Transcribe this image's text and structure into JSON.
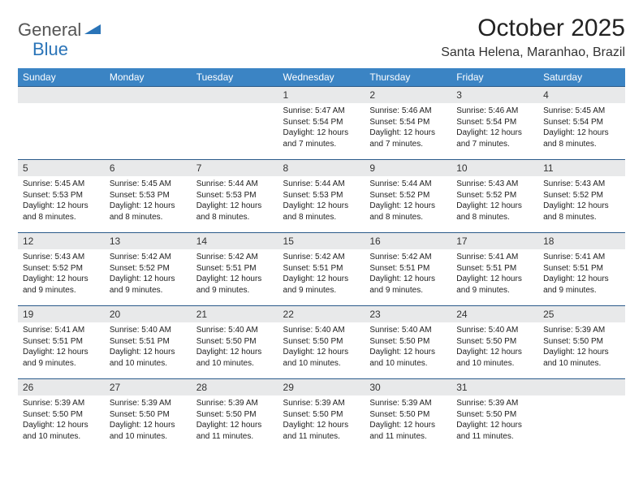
{
  "logo": {
    "text1": "General",
    "text2": "Blue"
  },
  "title": "October 2025",
  "location": "Santa Helena, Maranhao, Brazil",
  "colors": {
    "header_bg": "#3b84c4",
    "header_text": "#ffffff",
    "daynum_bg": "#e8e9ea",
    "row_border": "#2a5a8a",
    "logo_blue": "#2a74b8",
    "logo_gray": "#555555",
    "text": "#222222",
    "background": "#ffffff"
  },
  "weekdays": [
    "Sunday",
    "Monday",
    "Tuesday",
    "Wednesday",
    "Thursday",
    "Friday",
    "Saturday"
  ],
  "weeks": [
    [
      {
        "n": "",
        "lines": []
      },
      {
        "n": "",
        "lines": []
      },
      {
        "n": "",
        "lines": []
      },
      {
        "n": "1",
        "lines": [
          "Sunrise: 5:47 AM",
          "Sunset: 5:54 PM",
          "Daylight: 12 hours",
          "and 7 minutes."
        ]
      },
      {
        "n": "2",
        "lines": [
          "Sunrise: 5:46 AM",
          "Sunset: 5:54 PM",
          "Daylight: 12 hours",
          "and 7 minutes."
        ]
      },
      {
        "n": "3",
        "lines": [
          "Sunrise: 5:46 AM",
          "Sunset: 5:54 PM",
          "Daylight: 12 hours",
          "and 7 minutes."
        ]
      },
      {
        "n": "4",
        "lines": [
          "Sunrise: 5:45 AM",
          "Sunset: 5:54 PM",
          "Daylight: 12 hours",
          "and 8 minutes."
        ]
      }
    ],
    [
      {
        "n": "5",
        "lines": [
          "Sunrise: 5:45 AM",
          "Sunset: 5:53 PM",
          "Daylight: 12 hours",
          "and 8 minutes."
        ]
      },
      {
        "n": "6",
        "lines": [
          "Sunrise: 5:45 AM",
          "Sunset: 5:53 PM",
          "Daylight: 12 hours",
          "and 8 minutes."
        ]
      },
      {
        "n": "7",
        "lines": [
          "Sunrise: 5:44 AM",
          "Sunset: 5:53 PM",
          "Daylight: 12 hours",
          "and 8 minutes."
        ]
      },
      {
        "n": "8",
        "lines": [
          "Sunrise: 5:44 AM",
          "Sunset: 5:53 PM",
          "Daylight: 12 hours",
          "and 8 minutes."
        ]
      },
      {
        "n": "9",
        "lines": [
          "Sunrise: 5:44 AM",
          "Sunset: 5:52 PM",
          "Daylight: 12 hours",
          "and 8 minutes."
        ]
      },
      {
        "n": "10",
        "lines": [
          "Sunrise: 5:43 AM",
          "Sunset: 5:52 PM",
          "Daylight: 12 hours",
          "and 8 minutes."
        ]
      },
      {
        "n": "11",
        "lines": [
          "Sunrise: 5:43 AM",
          "Sunset: 5:52 PM",
          "Daylight: 12 hours",
          "and 8 minutes."
        ]
      }
    ],
    [
      {
        "n": "12",
        "lines": [
          "Sunrise: 5:43 AM",
          "Sunset: 5:52 PM",
          "Daylight: 12 hours",
          "and 9 minutes."
        ]
      },
      {
        "n": "13",
        "lines": [
          "Sunrise: 5:42 AM",
          "Sunset: 5:52 PM",
          "Daylight: 12 hours",
          "and 9 minutes."
        ]
      },
      {
        "n": "14",
        "lines": [
          "Sunrise: 5:42 AM",
          "Sunset: 5:51 PM",
          "Daylight: 12 hours",
          "and 9 minutes."
        ]
      },
      {
        "n": "15",
        "lines": [
          "Sunrise: 5:42 AM",
          "Sunset: 5:51 PM",
          "Daylight: 12 hours",
          "and 9 minutes."
        ]
      },
      {
        "n": "16",
        "lines": [
          "Sunrise: 5:42 AM",
          "Sunset: 5:51 PM",
          "Daylight: 12 hours",
          "and 9 minutes."
        ]
      },
      {
        "n": "17",
        "lines": [
          "Sunrise: 5:41 AM",
          "Sunset: 5:51 PM",
          "Daylight: 12 hours",
          "and 9 minutes."
        ]
      },
      {
        "n": "18",
        "lines": [
          "Sunrise: 5:41 AM",
          "Sunset: 5:51 PM",
          "Daylight: 12 hours",
          "and 9 minutes."
        ]
      }
    ],
    [
      {
        "n": "19",
        "lines": [
          "Sunrise: 5:41 AM",
          "Sunset: 5:51 PM",
          "Daylight: 12 hours",
          "and 9 minutes."
        ]
      },
      {
        "n": "20",
        "lines": [
          "Sunrise: 5:40 AM",
          "Sunset: 5:51 PM",
          "Daylight: 12 hours",
          "and 10 minutes."
        ]
      },
      {
        "n": "21",
        "lines": [
          "Sunrise: 5:40 AM",
          "Sunset: 5:50 PM",
          "Daylight: 12 hours",
          "and 10 minutes."
        ]
      },
      {
        "n": "22",
        "lines": [
          "Sunrise: 5:40 AM",
          "Sunset: 5:50 PM",
          "Daylight: 12 hours",
          "and 10 minutes."
        ]
      },
      {
        "n": "23",
        "lines": [
          "Sunrise: 5:40 AM",
          "Sunset: 5:50 PM",
          "Daylight: 12 hours",
          "and 10 minutes."
        ]
      },
      {
        "n": "24",
        "lines": [
          "Sunrise: 5:40 AM",
          "Sunset: 5:50 PM",
          "Daylight: 12 hours",
          "and 10 minutes."
        ]
      },
      {
        "n": "25",
        "lines": [
          "Sunrise: 5:39 AM",
          "Sunset: 5:50 PM",
          "Daylight: 12 hours",
          "and 10 minutes."
        ]
      }
    ],
    [
      {
        "n": "26",
        "lines": [
          "Sunrise: 5:39 AM",
          "Sunset: 5:50 PM",
          "Daylight: 12 hours",
          "and 10 minutes."
        ]
      },
      {
        "n": "27",
        "lines": [
          "Sunrise: 5:39 AM",
          "Sunset: 5:50 PM",
          "Daylight: 12 hours",
          "and 10 minutes."
        ]
      },
      {
        "n": "28",
        "lines": [
          "Sunrise: 5:39 AM",
          "Sunset: 5:50 PM",
          "Daylight: 12 hours",
          "and 11 minutes."
        ]
      },
      {
        "n": "29",
        "lines": [
          "Sunrise: 5:39 AM",
          "Sunset: 5:50 PM",
          "Daylight: 12 hours",
          "and 11 minutes."
        ]
      },
      {
        "n": "30",
        "lines": [
          "Sunrise: 5:39 AM",
          "Sunset: 5:50 PM",
          "Daylight: 12 hours",
          "and 11 minutes."
        ]
      },
      {
        "n": "31",
        "lines": [
          "Sunrise: 5:39 AM",
          "Sunset: 5:50 PM",
          "Daylight: 12 hours",
          "and 11 minutes."
        ]
      },
      {
        "n": "",
        "lines": []
      }
    ]
  ]
}
